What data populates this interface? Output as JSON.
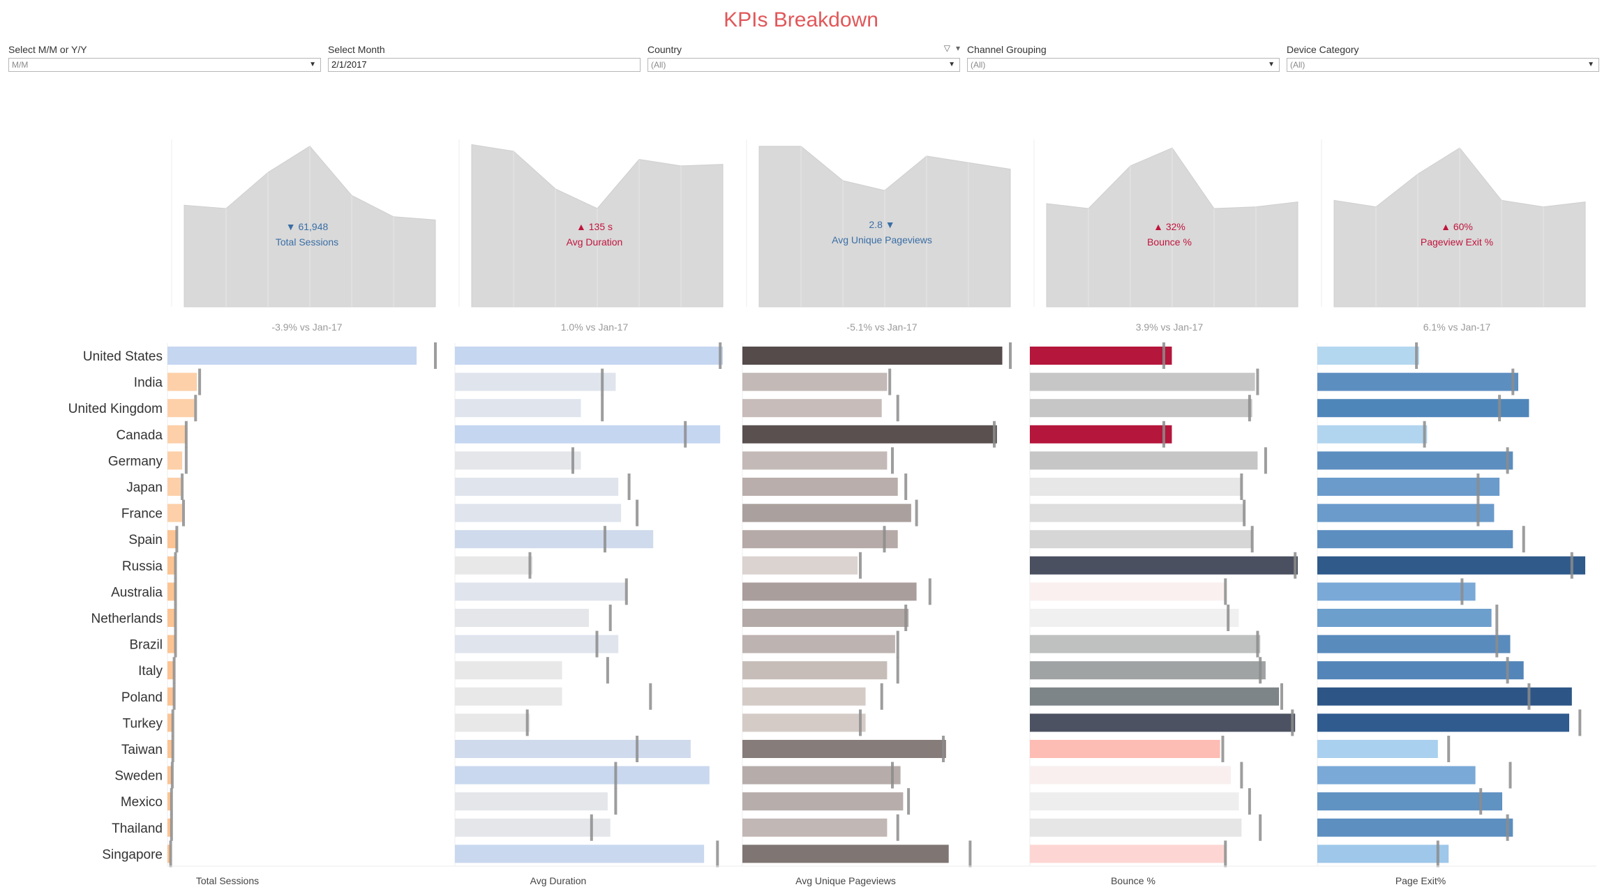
{
  "title": "KPIs Breakdown",
  "filters": [
    {
      "label": "Select M/M or Y/Y",
      "value": "M/M",
      "type": "dropdown"
    },
    {
      "label": "Select Month",
      "value": "2/1/2017",
      "type": "input"
    },
    {
      "label": "Country",
      "value": "(All)",
      "type": "dropdown"
    },
    {
      "label": "Channel Grouping",
      "value": "(All)",
      "type": "dropdown"
    },
    {
      "label": "Device Category",
      "value": "(All)",
      "type": "dropdown"
    }
  ],
  "colors": {
    "title": "#e15759",
    "area_fill": "#d9d9d9",
    "down": "#3a6ea5",
    "up": "#c0143c",
    "target": "#8c8c8c"
  },
  "chart_data": {
    "type": "bar",
    "countries": [
      "United States",
      "India",
      "United Kingdom",
      "Canada",
      "Germany",
      "Japan",
      "France",
      "Spain",
      "Russia",
      "Australia",
      "Netherlands",
      "Brazil",
      "Italy",
      "Poland",
      "Turkey",
      "Taiwan",
      "Sweden",
      "Mexico",
      "Thailand",
      "Singapore"
    ],
    "panels": [
      {
        "key": "sessions",
        "label": "Total Sessions",
        "kpi_value": "61,948",
        "direction": "down",
        "arrow_before": true,
        "comparison": "-3.9% vs Jan-17",
        "trend": [
          0.62,
          0.6,
          0.82,
          0.98,
          0.68,
          0.55,
          0.53
        ],
        "values": [
          0.93,
          0.11,
          0.1,
          0.07,
          0.055,
          0.05,
          0.055,
          0.035,
          0.03,
          0.03,
          0.03,
          0.03,
          0.025,
          0.025,
          0.02,
          0.02,
          0.018,
          0.015,
          0.015,
          0.012
        ],
        "targets": [
          1.0,
          0.12,
          0.105,
          0.07,
          0.07,
          0.055,
          0.06,
          0.035,
          0.03,
          0.03,
          0.03,
          0.03,
          0.025,
          0.025,
          0.02,
          0.02,
          0.018,
          0.015,
          0.015,
          0.012
        ],
        "colors": [
          "#c5d6f1",
          "#fdd0a9",
          "#fdd0a9",
          "#fdd0a9",
          "#fdd0a9",
          "#fdd0a9",
          "#fdd0a9",
          "#fcc493",
          "#fcc493",
          "#fcc493",
          "#fcc493",
          "#fcc493",
          "#fcc493",
          "#fcc493",
          "#fcc493",
          "#fcc493",
          "#fcc493",
          "#fcc493",
          "#fcc493",
          "#fcc493"
        ]
      },
      {
        "key": "duration",
        "label": "Avg Duration",
        "kpi_value": "135 s",
        "direction": "up",
        "arrow_before": true,
        "comparison": "1.0% vs Jan-17",
        "trend": [
          0.99,
          0.95,
          0.72,
          0.6,
          0.9,
          0.86,
          0.87
        ],
        "values": [
          1.0,
          0.6,
          0.47,
          0.99,
          0.47,
          0.61,
          0.62,
          0.74,
          0.29,
          0.64,
          0.5,
          0.61,
          0.4,
          0.4,
          0.28,
          0.88,
          0.95,
          0.57,
          0.58,
          0.93
        ],
        "targets": [
          0.99,
          0.55,
          0.55,
          0.86,
          0.44,
          0.65,
          0.68,
          0.56,
          0.28,
          0.64,
          0.58,
          0.53,
          0.57,
          0.73,
          0.27,
          0.68,
          0.6,
          0.6,
          0.51,
          0.98
        ],
        "colors": [
          "#c5d6f1",
          "#dfe4ed",
          "#dfe4ed",
          "#c5d6f1",
          "#e4e6ea",
          "#dfe4ed",
          "#dfe4ed",
          "#cfdaec",
          "#e8e8e8",
          "#dfe4ed",
          "#e4e6ea",
          "#dfe4ed",
          "#e8e8e8",
          "#e8e8e8",
          "#e8e8e8",
          "#cfdaec",
          "#c9d8ee",
          "#e4e6ea",
          "#e4e6ea",
          "#c9d8ee"
        ]
      },
      {
        "key": "pageviews",
        "label": "Avg Unique Pageviews",
        "kpi_value": "2.8",
        "direction": "down",
        "arrow_before": false,
        "comparison": "-5.1% vs Jan-17",
        "trend": [
          0.98,
          0.98,
          0.77,
          0.71,
          0.92,
          0.88,
          0.84
        ],
        "values": [
          0.97,
          0.54,
          0.52,
          0.95,
          0.54,
          0.58,
          0.63,
          0.58,
          0.43,
          0.65,
          0.62,
          0.57,
          0.54,
          0.46,
          0.46,
          0.76,
          0.59,
          0.6,
          0.54,
          0.77
        ],
        "targets": [
          1.0,
          0.55,
          0.58,
          0.94,
          0.56,
          0.61,
          0.65,
          0.53,
          0.44,
          0.7,
          0.61,
          0.58,
          0.58,
          0.52,
          0.44,
          0.75,
          0.56,
          0.62,
          0.58,
          0.85
        ],
        "colors": [
          "#554b4b",
          "#c3b9b6",
          "#c7bcb9",
          "#5a5050",
          "#c3b9b6",
          "#b9aeab",
          "#aaa09d",
          "#b5aaa7",
          "#dbd3d0",
          "#a99e9b",
          "#b3a9a6",
          "#bdb3b0",
          "#c6bdb9",
          "#d4cbc7",
          "#d4cbc7",
          "#867c7a",
          "#b6acaa",
          "#b7adab",
          "#c1b7b4",
          "#7f7573"
        ]
      },
      {
        "key": "bounce",
        "label": "Bounce %",
        "kpi_value": "32%",
        "direction": "up",
        "arrow_before": true,
        "comparison": "3.9% vs Jan-17",
        "trend": [
          0.63,
          0.6,
          0.86,
          0.97,
          0.6,
          0.61,
          0.64
        ],
        "values": [
          0.53,
          0.84,
          0.83,
          0.53,
          0.85,
          0.79,
          0.8,
          0.83,
          1.0,
          0.73,
          0.78,
          0.86,
          0.88,
          0.93,
          0.99,
          0.71,
          0.75,
          0.78,
          0.79,
          0.73
        ],
        "targets": [
          0.5,
          0.85,
          0.82,
          0.5,
          0.88,
          0.79,
          0.8,
          0.83,
          0.99,
          0.73,
          0.74,
          0.85,
          0.86,
          0.94,
          0.98,
          0.72,
          0.79,
          0.82,
          0.86,
          0.73
        ],
        "colors": [
          "#b5163b",
          "#c6c6c6",
          "#c6c6c6",
          "#b5163b",
          "#c6c6c6",
          "#e7e7e7",
          "#dedede",
          "#d6d6d6",
          "#4b5060",
          "#fbf0f0",
          "#f0f0f0",
          "#bfc1c1",
          "#9fa3a4",
          "#7d8588",
          "#4c5262",
          "#fdbcb4",
          "#f9efef",
          "#eeeeee",
          "#e6e6e6",
          "#fdd6d3"
        ]
      },
      {
        "key": "exit",
        "label": "Pageview Exit %",
        "axis_label": "Page Exit%",
        "kpi_value": "60%",
        "direction": "up",
        "arrow_before": true,
        "comparison": "6.1% vs Jan-17",
        "trend": [
          0.65,
          0.61,
          0.81,
          0.97,
          0.65,
          0.61,
          0.64
        ],
        "values": [
          0.38,
          0.75,
          0.79,
          0.41,
          0.73,
          0.68,
          0.66,
          0.73,
          1.0,
          0.59,
          0.65,
          0.72,
          0.77,
          0.95,
          0.94,
          0.45,
          0.59,
          0.69,
          0.73,
          0.49
        ],
        "targets": [
          0.37,
          0.73,
          0.68,
          0.4,
          0.71,
          0.6,
          0.6,
          0.77,
          0.95,
          0.54,
          0.67,
          0.67,
          0.71,
          0.79,
          0.98,
          0.49,
          0.72,
          0.61,
          0.71,
          0.45
        ],
        "colors": [
          "#b4d7f0",
          "#5c8ec0",
          "#4f86ba",
          "#b2d5ef",
          "#5c8ec0",
          "#6a9bcb",
          "#6a9bcb",
          "#5c8ec0",
          "#2f5a8a",
          "#7aa9d7",
          "#6d9fcd",
          "#5a8bbd",
          "#5385b8",
          "#2d5686",
          "#2f5b8f",
          "#a9d0ee",
          "#7aa9d7",
          "#6092c2",
          "#5d8fc0",
          "#9ec7ea"
        ]
      }
    ]
  }
}
